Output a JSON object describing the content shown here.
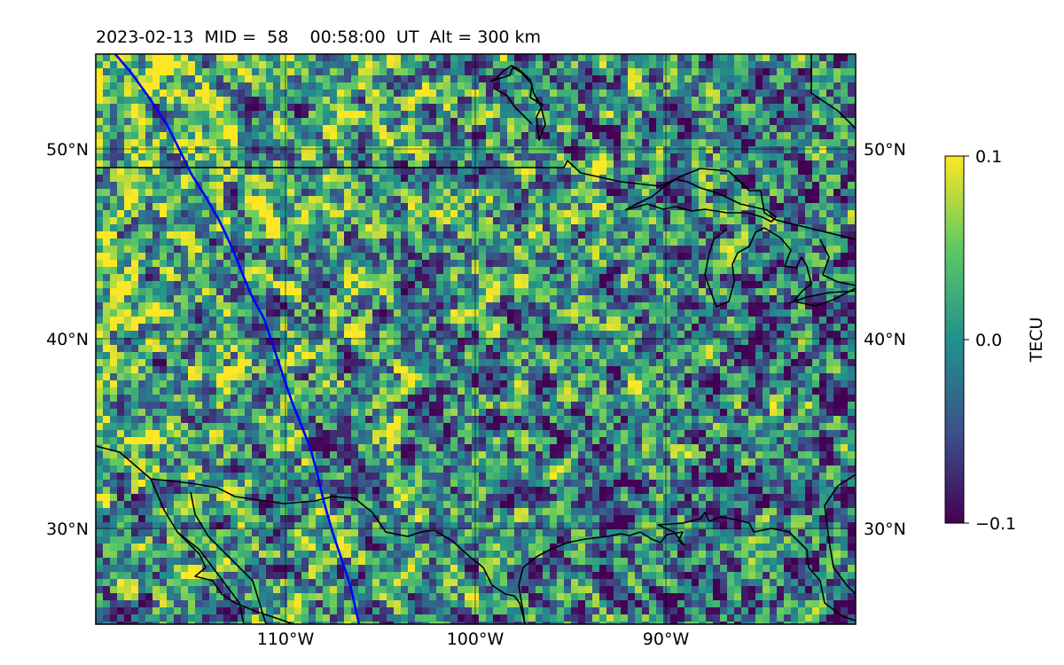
{
  "title": "2023-02-13  MID =  58    00:58:00  UT  Alt = 300 km",
  "lat_ticks": [
    "50°N",
    "40°N",
    "30°N"
  ],
  "lon_ticks": [
    "110°W",
    "100°W",
    "90°W"
  ],
  "colorbar": {
    "label": "TECU",
    "ticks": [
      "0.1",
      "0.0",
      "−0.1"
    ],
    "range": [
      -0.1,
      0.1
    ],
    "colormap": "viridis",
    "colors": [
      "#440154",
      "#3b528b",
      "#21918c",
      "#5ec962",
      "#fde725"
    ]
  },
  "map": {
    "projection": "lat-lon",
    "lon_range": [
      -120,
      -80
    ],
    "lat_range": [
      25,
      55
    ],
    "gridline_lons": [
      -110,
      -100,
      -90
    ],
    "gridline_lats": [
      50,
      40,
      30
    ],
    "terminator_color": "#0000ff",
    "coastline_color": "#000000"
  }
}
